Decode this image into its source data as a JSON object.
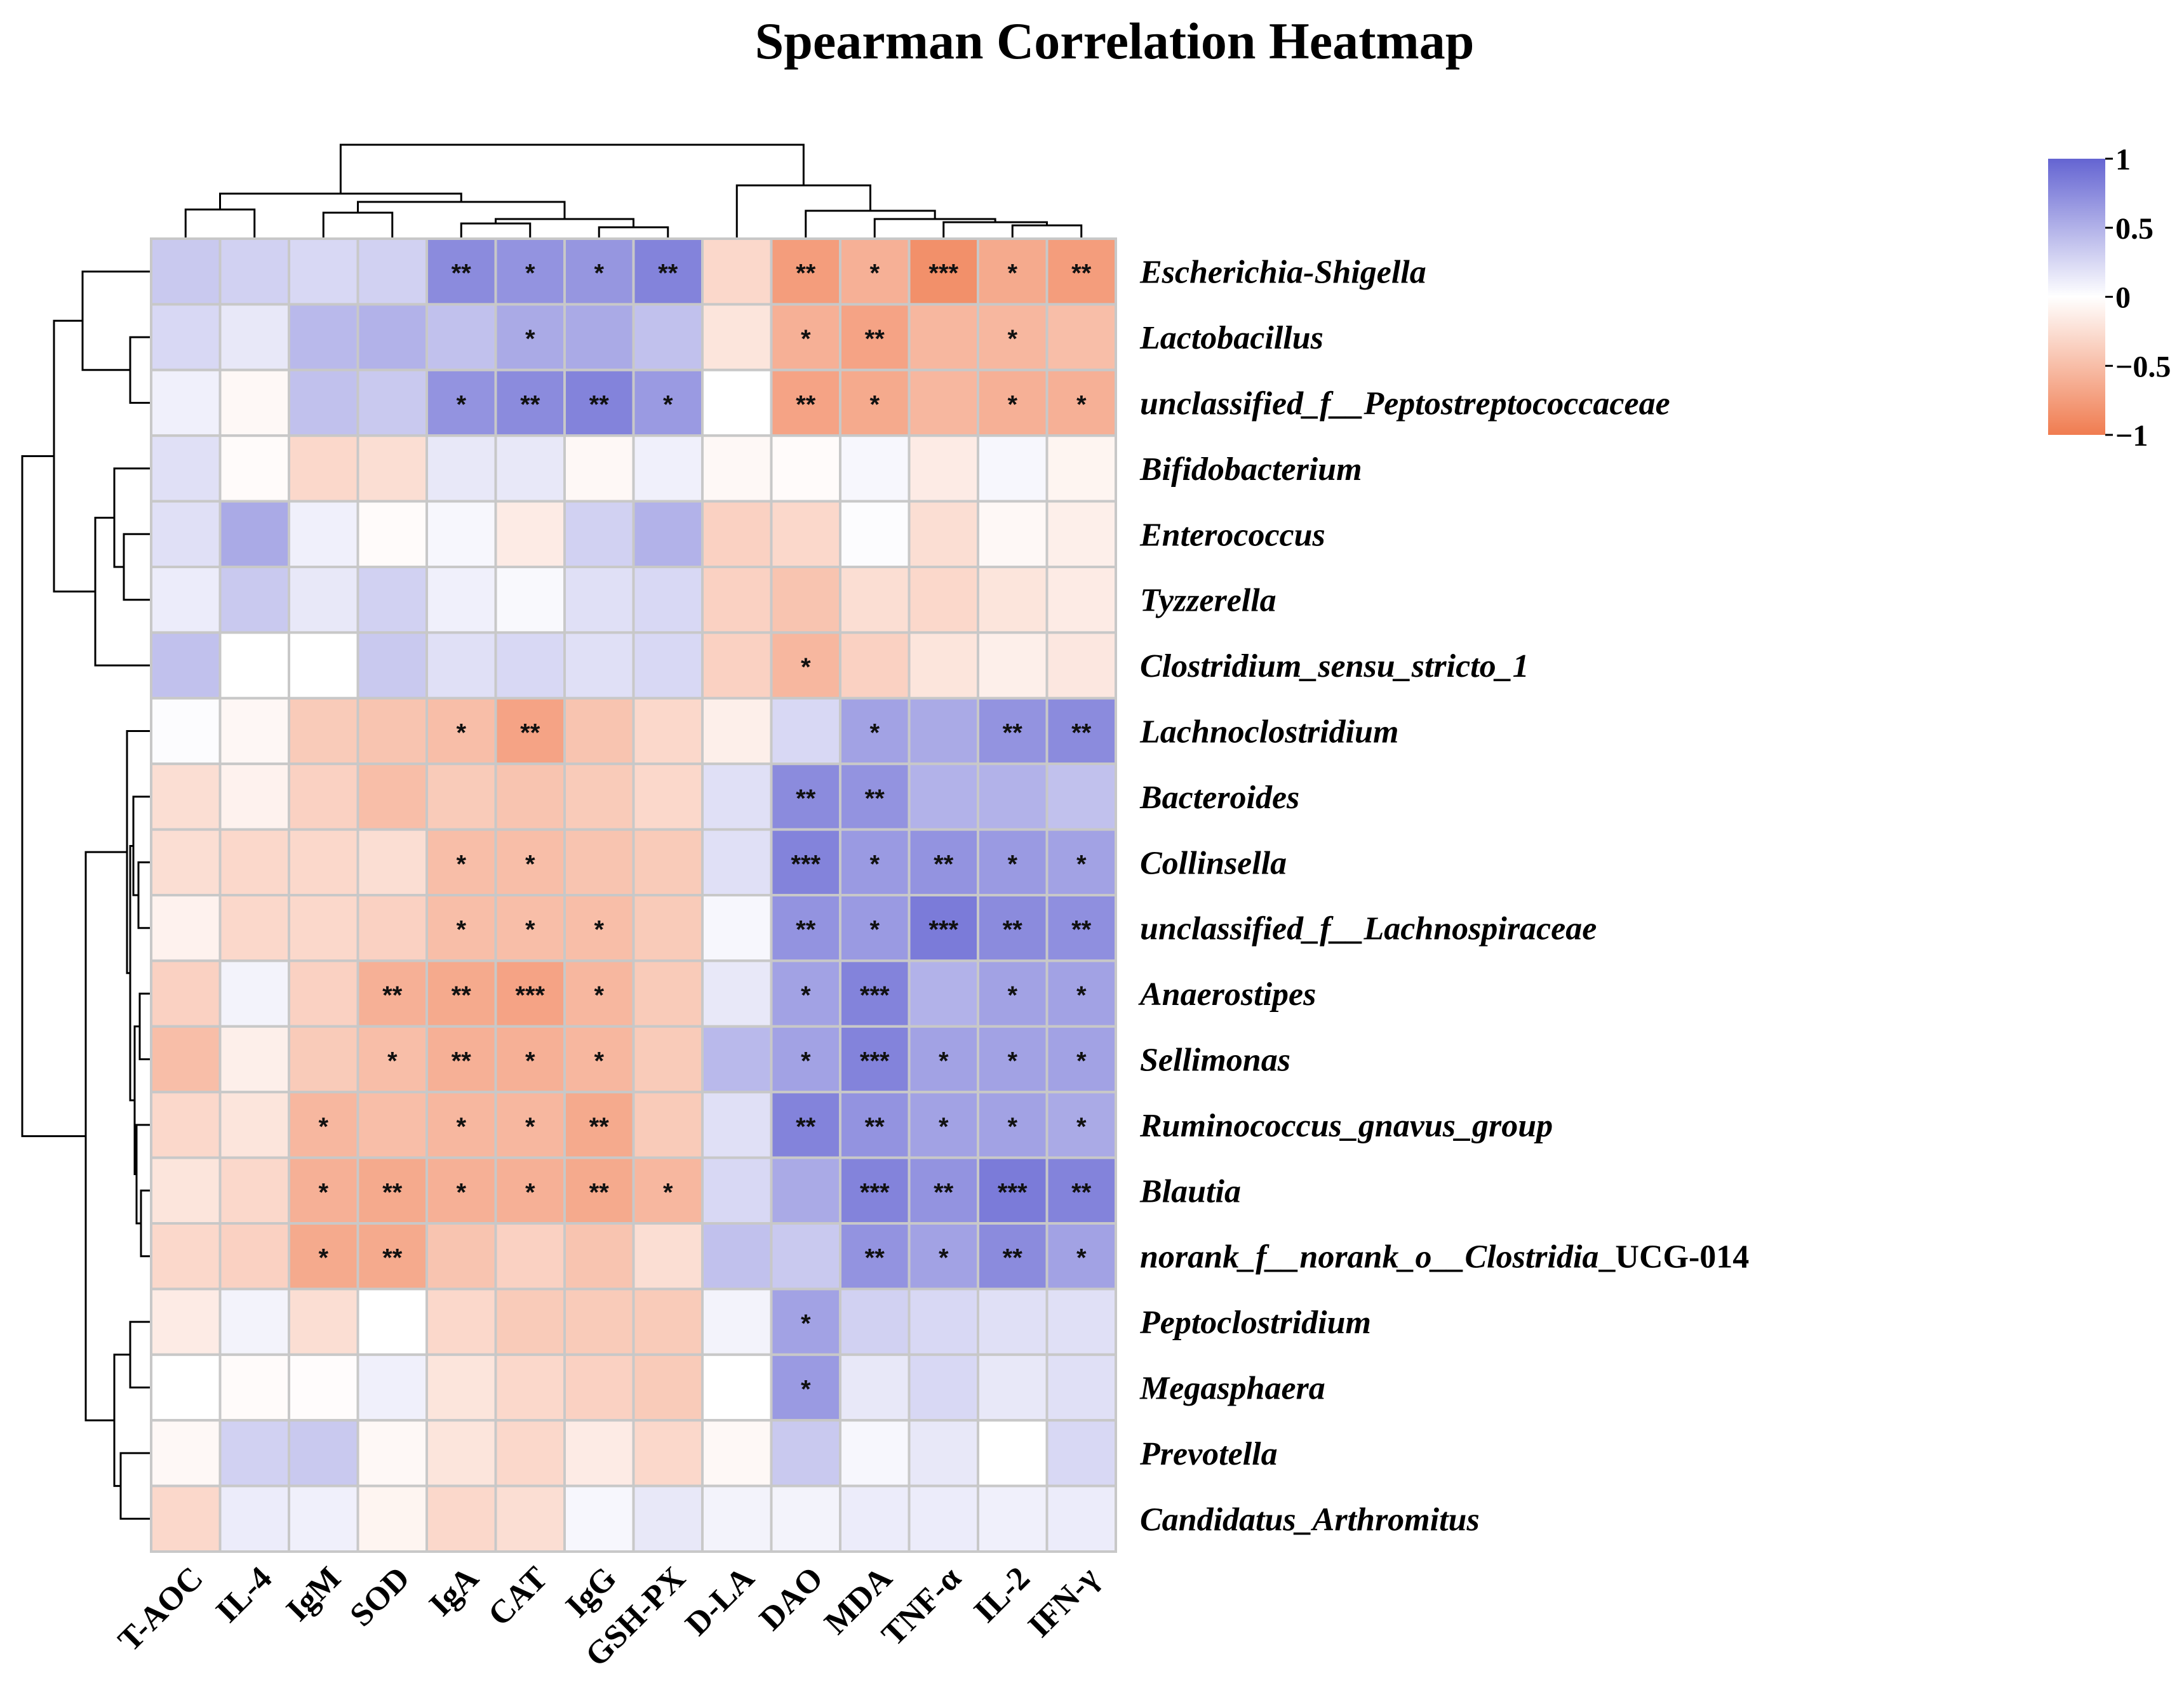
{
  "chart_data": {
    "type": "heatmap",
    "title": "Spearman Correlation Heatmap",
    "columns": [
      "T-AOC",
      "IL-4",
      "IgM",
      "SOD",
      "IgA",
      "CAT",
      "IgG",
      "GSH-PX",
      "D-LA",
      "DAO",
      "MDA",
      "TNF-α",
      "IL-2",
      "IFN-γ"
    ],
    "rows": [
      {
        "label": "Escherichia-Shigella",
        "italic": "Escherichia-Shigella",
        "suffix": ""
      },
      {
        "label": "Lactobacillus",
        "italic": "Lactobacillus",
        "suffix": ""
      },
      {
        "label": "unclassified_f__Peptostreptococcaceae",
        "italic": "unclassified_f__Peptostreptococcaceae",
        "suffix": ""
      },
      {
        "label": "Bifidobacterium",
        "italic": "Bifidobacterium",
        "suffix": ""
      },
      {
        "label": "Enterococcus",
        "italic": "Enterococcus",
        "suffix": ""
      },
      {
        "label": "Tyzzerella",
        "italic": "Tyzzerella",
        "suffix": ""
      },
      {
        "label": "Clostridium_sensu_stricto_1",
        "italic": "Clostridium_sensu_stricto_1",
        "suffix": ""
      },
      {
        "label": "Lachnoclostridium",
        "italic": "Lachnoclostridium",
        "suffix": ""
      },
      {
        "label": "Bacteroides",
        "italic": "Bacteroides",
        "suffix": ""
      },
      {
        "label": "Collinsella",
        "italic": "Collinsella",
        "suffix": ""
      },
      {
        "label": "unclassified_f__Lachnospiraceae",
        "italic": "unclassified_f__Lachnospiraceae",
        "suffix": ""
      },
      {
        "label": "Anaerostipes",
        "italic": "Anaerostipes",
        "suffix": ""
      },
      {
        "label": "Sellimonas",
        "italic": "Sellimonas",
        "suffix": ""
      },
      {
        "label": "Ruminococcus_gnavus_group",
        "italic": "Ruminococcus_gnavus_group",
        "suffix": ""
      },
      {
        "label": "Blautia",
        "italic": "Blautia",
        "suffix": ""
      },
      {
        "label": "norank_f__norank_o__Clostridia_UCG-014",
        "italic": "norank_f__norank_o__Clostridia",
        "suffix": "_UCG-014"
      },
      {
        "label": "Peptoclostridium",
        "italic": "Peptoclostridium",
        "suffix": ""
      },
      {
        "label": "Megasphaera",
        "italic": "Megasphaera",
        "suffix": ""
      },
      {
        "label": "Prevotella",
        "italic": "Prevotella",
        "suffix": ""
      },
      {
        "label": "Candidatus_Arthromitus",
        "italic": "Candidatus_Arthromitus",
        "suffix": ""
      }
    ],
    "values": [
      [
        0.35,
        0.3,
        0.25,
        0.3,
        0.75,
        0.7,
        0.68,
        0.8,
        -0.3,
        -0.75,
        -0.6,
        -0.85,
        -0.65,
        -0.75
      ],
      [
        0.25,
        0.15,
        0.45,
        0.5,
        0.4,
        0.55,
        0.55,
        0.4,
        -0.2,
        -0.6,
        -0.7,
        -0.55,
        -0.55,
        -0.5
      ],
      [
        0.1,
        -0.05,
        0.4,
        0.35,
        0.7,
        0.75,
        0.8,
        0.65,
        0.0,
        -0.7,
        -0.65,
        -0.55,
        -0.6,
        -0.6
      ],
      [
        0.2,
        -0.03,
        -0.3,
        -0.25,
        0.15,
        0.15,
        -0.05,
        0.1,
        -0.05,
        -0.03,
        0.05,
        -0.15,
        0.05,
        -0.08
      ],
      [
        0.2,
        0.55,
        0.1,
        -0.03,
        0.05,
        -0.15,
        0.3,
        0.5,
        -0.35,
        -0.3,
        0.02,
        -0.25,
        -0.05,
        -0.12
      ],
      [
        0.12,
        0.35,
        0.15,
        0.3,
        0.1,
        0.04,
        0.2,
        0.25,
        -0.35,
        -0.45,
        -0.25,
        -0.3,
        -0.2,
        -0.15
      ],
      [
        0.4,
        0.0,
        0.0,
        0.35,
        0.2,
        0.25,
        0.2,
        0.25,
        -0.35,
        -0.55,
        -0.35,
        -0.2,
        -0.12,
        -0.18
      ],
      [
        0.02,
        -0.06,
        -0.4,
        -0.45,
        -0.5,
        -0.7,
        -0.45,
        -0.3,
        -0.12,
        0.25,
        0.6,
        0.55,
        0.7,
        0.75
      ],
      [
        -0.25,
        -0.1,
        -0.35,
        -0.5,
        -0.4,
        -0.45,
        -0.4,
        -0.3,
        0.2,
        0.75,
        0.7,
        0.5,
        0.5,
        0.4
      ],
      [
        -0.25,
        -0.3,
        -0.3,
        -0.25,
        -0.5,
        -0.5,
        -0.45,
        -0.4,
        0.2,
        0.8,
        0.65,
        0.7,
        0.65,
        0.6
      ],
      [
        -0.1,
        -0.3,
        -0.3,
        -0.35,
        -0.5,
        -0.5,
        -0.5,
        -0.4,
        0.05,
        0.7,
        0.65,
        0.85,
        0.75,
        0.72
      ],
      [
        -0.35,
        0.08,
        -0.35,
        -0.6,
        -0.65,
        -0.7,
        -0.55,
        -0.4,
        0.15,
        0.6,
        0.8,
        0.5,
        0.6,
        0.6
      ],
      [
        -0.5,
        -0.12,
        -0.4,
        -0.5,
        -0.6,
        -0.6,
        -0.55,
        -0.4,
        0.45,
        0.6,
        0.8,
        0.6,
        0.6,
        0.6
      ],
      [
        -0.3,
        -0.2,
        -0.55,
        -0.5,
        -0.55,
        -0.55,
        -0.65,
        -0.4,
        0.2,
        0.8,
        0.7,
        0.6,
        0.6,
        0.55
      ],
      [
        -0.2,
        -0.3,
        -0.6,
        -0.65,
        -0.6,
        -0.6,
        -0.65,
        -0.55,
        0.25,
        0.55,
        0.8,
        0.7,
        0.85,
        0.8
      ],
      [
        -0.3,
        -0.35,
        -0.65,
        -0.65,
        -0.45,
        -0.35,
        -0.45,
        -0.25,
        0.4,
        0.35,
        0.7,
        0.6,
        0.75,
        0.6
      ],
      [
        -0.15,
        0.08,
        -0.25,
        0.0,
        -0.3,
        -0.4,
        -0.4,
        -0.4,
        0.08,
        0.6,
        0.3,
        0.25,
        0.2,
        0.2
      ],
      [
        0.0,
        -0.03,
        -0.02,
        0.1,
        -0.2,
        -0.3,
        -0.35,
        -0.4,
        0.0,
        0.65,
        0.15,
        0.25,
        0.15,
        0.2
      ],
      [
        -0.05,
        0.3,
        0.35,
        -0.05,
        -0.2,
        -0.3,
        -0.15,
        -0.3,
        -0.05,
        0.35,
        0.05,
        0.15,
        0.0,
        0.25
      ],
      [
        -0.3,
        0.12,
        0.1,
        -0.08,
        -0.3,
        -0.25,
        0.05,
        0.15,
        0.08,
        0.08,
        0.12,
        0.12,
        0.1,
        0.12
      ]
    ],
    "significance": [
      [
        "",
        "",
        "",
        "",
        "**",
        "*",
        "*",
        "**",
        "",
        "**",
        "*",
        "***",
        "*",
        "**"
      ],
      [
        "",
        "",
        "",
        "",
        "",
        "*",
        "",
        "",
        "",
        "*",
        "**",
        "",
        "*",
        ""
      ],
      [
        "",
        "",
        "",
        "",
        "*",
        "**",
        "**",
        "*",
        "",
        "**",
        "*",
        "",
        "*",
        "*"
      ],
      [
        "",
        "",
        "",
        "",
        "",
        "",
        "",
        "",
        "",
        "",
        "",
        "",
        "",
        ""
      ],
      [
        "",
        "",
        "",
        "",
        "",
        "",
        "",
        "",
        "",
        "",
        "",
        "",
        "",
        ""
      ],
      [
        "",
        "",
        "",
        "",
        "",
        "",
        "",
        "",
        "",
        "",
        "",
        "",
        "",
        ""
      ],
      [
        "",
        "",
        "",
        "",
        "",
        "",
        "",
        "",
        "",
        "*",
        "",
        "",
        "",
        ""
      ],
      [
        "",
        "",
        "",
        "",
        "*",
        "**",
        "",
        "",
        "",
        "",
        "*",
        "",
        "**",
        "**"
      ],
      [
        "",
        "",
        "",
        "",
        "",
        "",
        "",
        "",
        "",
        "**",
        "**",
        "",
        "",
        ""
      ],
      [
        "",
        "",
        "",
        "",
        "*",
        "*",
        "",
        "",
        "",
        "***",
        "*",
        "**",
        "*",
        "*"
      ],
      [
        "",
        "",
        "",
        "",
        "*",
        "*",
        "*",
        "",
        "",
        "**",
        "*",
        "***",
        "**",
        "**"
      ],
      [
        "",
        "",
        "",
        "**",
        "**",
        "***",
        "*",
        "",
        "",
        "*",
        "***",
        "",
        "*",
        "*"
      ],
      [
        "",
        "",
        "",
        "*",
        "**",
        "*",
        "*",
        "",
        "",
        "*",
        "***",
        "*",
        "*",
        "*"
      ],
      [
        "",
        "",
        "*",
        "",
        "*",
        "*",
        "**",
        "",
        "",
        "**",
        "**",
        "*",
        "*",
        "*"
      ],
      [
        "",
        "",
        "*",
        "**",
        "*",
        "*",
        "**",
        "*",
        "",
        "",
        "***",
        "**",
        "***",
        "**"
      ],
      [
        "",
        "",
        "*",
        "**",
        "",
        "",
        "",
        "",
        "",
        "",
        "**",
        "*",
        "**",
        "*"
      ],
      [
        "",
        "",
        "",
        "",
        "",
        "",
        "",
        "",
        "",
        "*",
        "",
        "",
        "",
        ""
      ],
      [
        "",
        "",
        "",
        "",
        "",
        "",
        "",
        "",
        "",
        "*",
        "",
        "",
        "",
        ""
      ],
      [
        "",
        "",
        "",
        "",
        "",
        "",
        "",
        "",
        "",
        "",
        "",
        "",
        "",
        ""
      ],
      [
        "",
        "",
        "",
        "",
        "",
        "",
        "",
        "",
        "",
        "",
        "",
        "",
        "",
        ""
      ]
    ],
    "color_scale": {
      "range": [
        -1,
        1
      ],
      "low_color": "#f07c50",
      "mid_color": "#ffffff",
      "high_color": "#6464d2",
      "ticks": [
        1,
        0.5,
        0,
        -0.5,
        -1
      ],
      "tick_labels": [
        "1",
        "0.5",
        "0",
        "−0.5",
        "−1"
      ]
    },
    "cell_border_color": "#c8c8c8"
  }
}
